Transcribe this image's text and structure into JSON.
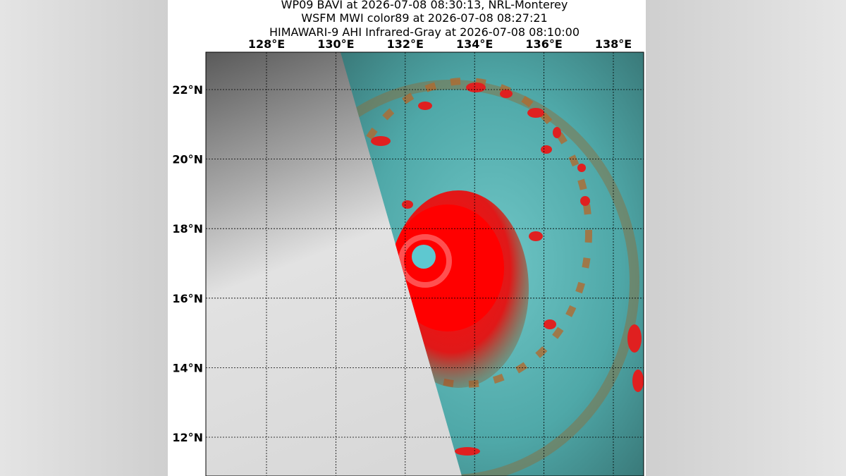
{
  "header": {
    "lines": [
      "WP09 BAVI at 2026-07-08 08:30:13, NRL-Monterey",
      "WSFM MWI color89 at 2026-07-08 08:27:21",
      "HIMAWARI-9 AHI Infrared-Gray at 2026-07-08 08:10:00"
    ]
  },
  "map": {
    "longitude_labels": [
      "128°E",
      "130°E",
      "132°E",
      "134°E",
      "136°E",
      "138°E"
    ],
    "latitude_labels": [
      "22°N",
      "20°N",
      "18°N",
      "16°N",
      "14°N",
      "12°N"
    ]
  }
}
